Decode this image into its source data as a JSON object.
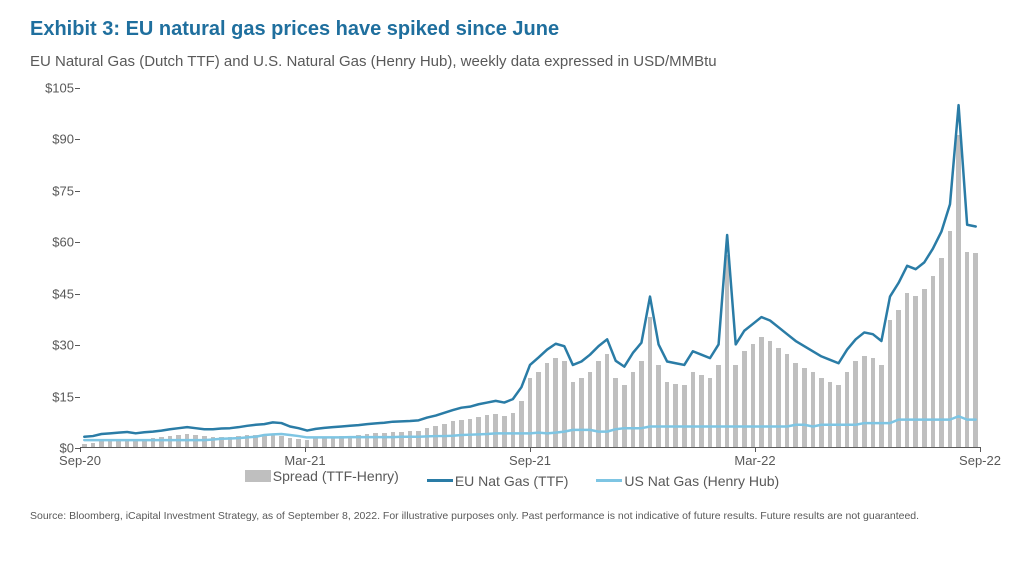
{
  "title": "Exhibit 3: EU natural gas prices have spiked since June",
  "title_color": "#1f6f9e",
  "subtitle": "EU Natural Gas (Dutch TTF) and U.S. Natural Gas (Henry Hub), weekly data expressed in USD/MMBtu",
  "subtitle_color": "#595959",
  "source_note": "Source: Bloomberg, iCapital Investment Strategy, as of September 8, 2022. For illustrative purposes only. Past performance is not indicative of future results. Future results are not guaranteed.",
  "source_color": "#595959",
  "chart": {
    "type": "bar_and_lines",
    "ylim": [
      0,
      105
    ],
    "ytick_step": 15,
    "ytick_prefix": "$",
    "ytick_labels": [
      "$0",
      "$15",
      "$30",
      "$45",
      "$60",
      "$75",
      "$90",
      "$105"
    ],
    "xtick_labels": [
      "Sep-20",
      "Mar-21",
      "Sep-21",
      "Mar-22",
      "Sep-22"
    ],
    "background_color": "#ffffff",
    "axis_color": "#595959",
    "tick_label_color": "#595959",
    "tick_fontsize": 13,
    "series": {
      "spread_bars": {
        "label": "Spread (TTF-Henry)",
        "color": "#bfbfbf",
        "bar_width_frac": 0.55,
        "data": [
          1.0,
          1.2,
          1.8,
          2.0,
          2.2,
          2.4,
          2.0,
          2.3,
          2.5,
          2.8,
          3.2,
          3.5,
          3.8,
          3.5,
          3.2,
          3.0,
          3.0,
          3.0,
          3.2,
          3.4,
          3.5,
          3.2,
          3.5,
          3.2,
          2.5,
          2.3,
          2.0,
          2.5,
          2.8,
          3.0,
          3.2,
          3.3,
          3.5,
          3.8,
          4.0,
          4.2,
          4.5,
          4.5,
          4.6,
          4.8,
          5.5,
          6.0,
          6.8,
          7.5,
          8.0,
          8.2,
          8.8,
          9.2,
          9.5,
          9.0,
          10.0,
          13.5,
          20.0,
          22.0,
          24.5,
          26.0,
          25.0,
          19.0,
          20.0,
          22.0,
          25.0,
          27.0,
          20.0,
          18.0,
          22.0,
          25.0,
          38.0,
          24.0,
          19.0,
          18.5,
          18.0,
          22.0,
          21.0,
          20.0,
          24.0,
          56.0,
          24.0,
          28.0,
          30.0,
          32.0,
          31.0,
          29.0,
          27.0,
          24.5,
          23.0,
          22.0,
          20.0,
          19.0,
          18.0,
          22.0,
          25.0,
          26.5,
          26.0,
          24.0,
          37.0,
          40.0,
          45.0,
          44.0,
          46.0,
          50.0,
          55.0,
          63.0,
          91.0,
          57.0,
          56.5
        ]
      },
      "eu_ttf": {
        "label": "EU Nat Gas (TTF)",
        "color": "#2a7ca6",
        "line_width": 2.5,
        "data": [
          3.0,
          3.2,
          3.8,
          4.0,
          4.2,
          4.4,
          4.0,
          4.3,
          4.5,
          4.8,
          5.2,
          5.5,
          5.8,
          5.5,
          5.2,
          5.2,
          5.4,
          5.5,
          5.8,
          6.2,
          6.5,
          6.7,
          7.2,
          7.0,
          6.0,
          5.5,
          4.8,
          5.3,
          5.6,
          5.8,
          6.0,
          6.2,
          6.4,
          6.7,
          6.9,
          7.1,
          7.4,
          7.5,
          7.6,
          7.8,
          8.6,
          9.2,
          10.0,
          10.8,
          11.5,
          11.8,
          12.5,
          13.0,
          13.5,
          13.0,
          14.0,
          17.5,
          24.0,
          26.2,
          28.5,
          30.2,
          29.5,
          24.0,
          25.0,
          27.0,
          29.5,
          31.5,
          25.2,
          23.5,
          27.5,
          30.5,
          44.0,
          30.0,
          25.0,
          24.5,
          24.0,
          28.0,
          27.0,
          26.0,
          30.0,
          62.0,
          30.0,
          34.0,
          36.0,
          38.0,
          37.0,
          35.0,
          33.0,
          31.0,
          29.5,
          28.0,
          26.5,
          25.5,
          24.5,
          28.5,
          31.5,
          33.5,
          33.0,
          31.0,
          44.0,
          48.0,
          53.0,
          52.0,
          54.0,
          58.0,
          63.0,
          71.0,
          100.0,
          65.0,
          64.5
        ]
      },
      "us_hh": {
        "label": "US Nat Gas (Henry Hub)",
        "color": "#7ec5e3",
        "line_width": 2.5,
        "data": [
          2.0,
          2.0,
          2.0,
          2.0,
          2.0,
          2.0,
          2.0,
          2.0,
          2.0,
          2.0,
          2.0,
          2.0,
          2.0,
          2.0,
          2.0,
          2.2,
          2.4,
          2.5,
          2.6,
          2.8,
          3.0,
          3.5,
          3.7,
          3.8,
          3.5,
          3.2,
          2.8,
          2.8,
          2.8,
          2.8,
          2.8,
          2.9,
          2.9,
          2.9,
          2.9,
          2.9,
          2.9,
          3.0,
          3.0,
          3.0,
          3.1,
          3.2,
          3.2,
          3.3,
          3.5,
          3.6,
          3.7,
          3.8,
          4.0,
          4.0,
          4.0,
          4.0,
          4.0,
          4.2,
          4.0,
          4.2,
          4.5,
          5.0,
          5.0,
          5.0,
          4.5,
          4.5,
          5.2,
          5.5,
          5.5,
          5.5,
          6.0,
          6.0,
          6.0,
          6.0,
          6.0,
          6.0,
          6.0,
          6.0,
          6.0,
          6.0,
          6.0,
          6.0,
          6.0,
          6.0,
          6.0,
          6.0,
          6.0,
          6.5,
          6.5,
          6.0,
          6.5,
          6.5,
          6.5,
          6.5,
          6.5,
          7.0,
          7.0,
          7.0,
          7.0,
          8.0,
          8.0,
          8.0,
          8.0,
          8.0,
          8.0,
          8.0,
          9.0,
          8.0,
          8.0
        ]
      }
    },
    "legend": {
      "items": [
        {
          "key": "spread_bars",
          "shape": "rect"
        },
        {
          "key": "eu_ttf",
          "shape": "line"
        },
        {
          "key": "us_hh",
          "shape": "line"
        }
      ],
      "fontsize": 14,
      "text_color": "#595959"
    }
  }
}
